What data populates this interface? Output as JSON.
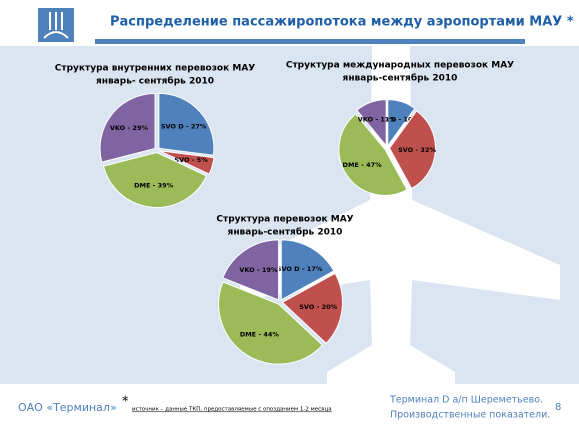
{
  "header": {
    "title": "Распределение пассажиропотока между аэропортами МАУ *"
  },
  "footer": {
    "company": "ОАО «Терминал»",
    "asterisk": "*",
    "note": "источник – данные ТКП, предоставляемые с опозданием 1-2 месяца",
    "right_lines": [
      "Терминал D а/п Шереметьево.",
      "Производственные показатели."
    ],
    "page": "8"
  },
  "chart_data": [
    {
      "type": "pie",
      "title": [
        "Структура внутренних перевозок МАУ",
        "январь- сентябрь 2010"
      ],
      "values": [
        27,
        5,
        39,
        29
      ],
      "value_labels": [
        "SVO D - 27%",
        "SVO - 5%",
        "DME - 39%",
        "VKO - 29%"
      ],
      "colors": [
        "#4f81bd",
        "#c0504d",
        "#9bbb59",
        "#8064a2"
      ]
    },
    {
      "type": "pie",
      "title": [
        "Структура международных перевозок МАУ",
        "январь-сентябрь 2010"
      ],
      "values": [
        10,
        32,
        47,
        11
      ],
      "value_labels": [
        "SVO D - 10%",
        "SVO - 32%",
        "DME - 47%",
        "VKO - 11%"
      ],
      "colors": [
        "#4f81bd",
        "#c0504d",
        "#9bbb59",
        "#8064a2"
      ]
    },
    {
      "type": "pie",
      "title": [
        "Структура перевозок МАУ",
        "январь-сентябрь 2010"
      ],
      "values": [
        17,
        20,
        44,
        19
      ],
      "value_labels": [
        "SVO D - 17%",
        "SVO - 20%",
        "DME - 44%",
        "VKO - 19%"
      ],
      "colors": [
        "#4f81bd",
        "#c0504d",
        "#9bbb59",
        "#8064a2"
      ]
    }
  ]
}
